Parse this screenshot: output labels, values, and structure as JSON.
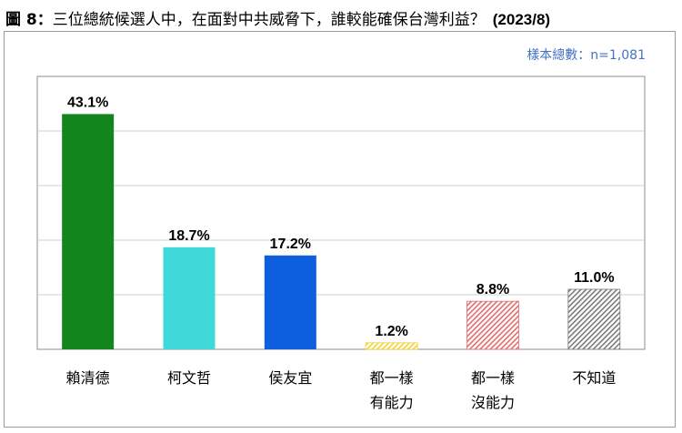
{
  "header": {
    "figure_label": "圖 8：",
    "question": "三位總統候選人中，在面對中共威脅下，誰較能確保台灣利益？",
    "date": "(2023/8)"
  },
  "sample_note": "樣本總數：n=1,081",
  "chart_data": {
    "type": "bar",
    "categories": [
      "賴清德",
      "柯文哲",
      "侯友宜",
      "都一樣\n有能力",
      "都一樣\n沒能力",
      "不知道"
    ],
    "values": [
      43.1,
      18.7,
      17.2,
      1.2,
      8.8,
      11.0
    ],
    "value_labels": [
      "43.1%",
      "18.7%",
      "17.2%",
      "1.2%",
      "8.8%",
      "11.0%"
    ],
    "ylim": [
      0,
      50
    ],
    "grid": true,
    "legend": "none",
    "bar_styles": [
      {
        "fill": "#12861c",
        "pattern": "solid"
      },
      {
        "fill": "#40d9d9",
        "pattern": "solid"
      },
      {
        "fill": "#0d5fe0",
        "pattern": "solid"
      },
      {
        "fill": "#f2d233",
        "pattern": "hatch"
      },
      {
        "fill": "#e36b6b",
        "pattern": "hatch"
      },
      {
        "fill": "#7a7a7a",
        "pattern": "hatch"
      }
    ]
  }
}
